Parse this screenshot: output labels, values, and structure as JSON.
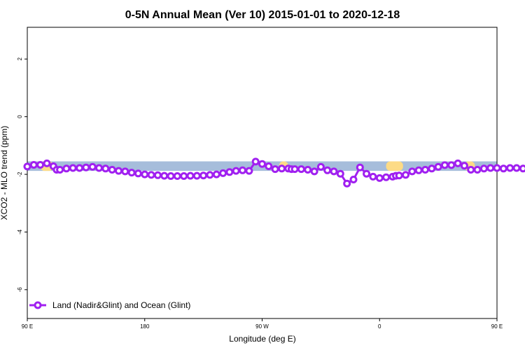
{
  "chart_data": {
    "type": "line",
    "title": "0-5N Annual Mean (Ver 10)   2015-01-01 to 2020-12-18",
    "xlabel": "Longitude (deg E)",
    "ylabel": "XCO2 - MLO trend (ppm)",
    "xlim": [
      90,
      450
    ],
    "ylim": [
      -7,
      3.1
    ],
    "x_ticks": [
      {
        "value": 90,
        "label": "90 E"
      },
      {
        "value": 180,
        "label": "180"
      },
      {
        "value": 270,
        "label": "90 W"
      },
      {
        "value": 360,
        "label": "0"
      },
      {
        "value": 450,
        "label": "90 E"
      },
      {
        "value": 540,
        "label": "180"
      }
    ],
    "y_ticks": [
      2,
      0,
      -2,
      -4,
      -6
    ],
    "grid": false,
    "legend_position": "bottom-left",
    "colors": {
      "series": "#a020f0",
      "band_ocean": "#a6bddb",
      "band_land": "#fddb86"
    },
    "series": [
      {
        "name": "Land (Nadir&Glint) and Ocean (Glint)",
        "x": [
          90,
          95,
          100,
          105,
          110,
          112.5,
          115,
          120,
          125,
          130,
          135,
          140,
          145,
          150,
          155,
          160,
          165,
          170,
          175,
          180,
          185,
          190,
          195,
          200,
          205,
          210,
          215,
          220,
          225,
          230,
          235,
          240,
          245,
          250,
          255,
          260,
          265,
          270,
          275,
          280,
          285,
          290,
          292.5,
          295,
          300,
          305,
          310,
          315,
          320,
          325,
          330,
          335,
          340,
          345,
          350,
          355,
          360,
          365,
          370,
          372.5,
          375,
          380,
          385,
          390,
          395,
          400,
          405,
          410,
          415,
          420,
          425,
          430,
          435,
          440,
          445,
          450,
          455,
          460,
          465,
          470
        ],
        "y": [
          -1.73,
          -1.67,
          -1.67,
          -1.62,
          -1.72,
          -1.84,
          -1.84,
          -1.8,
          -1.78,
          -1.78,
          -1.76,
          -1.74,
          -1.78,
          -1.8,
          -1.84,
          -1.88,
          -1.9,
          -1.94,
          -1.97,
          -2.0,
          -2.02,
          -2.03,
          -2.05,
          -2.06,
          -2.06,
          -2.06,
          -2.05,
          -2.05,
          -2.04,
          -2.02,
          -2.0,
          -1.96,
          -1.92,
          -1.88,
          -1.86,
          -1.88,
          -1.56,
          -1.64,
          -1.72,
          -1.82,
          -1.8,
          -1.8,
          -1.82,
          -1.82,
          -1.82,
          -1.84,
          -1.9,
          -1.74,
          -1.86,
          -1.9,
          -1.98,
          -2.32,
          -2.18,
          -1.76,
          -1.98,
          -2.08,
          -2.13,
          -2.1,
          -2.08,
          -2.05,
          -2.04,
          -2.02,
          -1.9,
          -1.86,
          -1.84,
          -1.8,
          -1.74,
          -1.68,
          -1.68,
          -1.62,
          -1.7,
          -1.84,
          -1.84,
          -1.8,
          -1.78,
          -1.78,
          -1.8,
          -1.78,
          -1.78,
          -1.8
        ]
      }
    ]
  }
}
